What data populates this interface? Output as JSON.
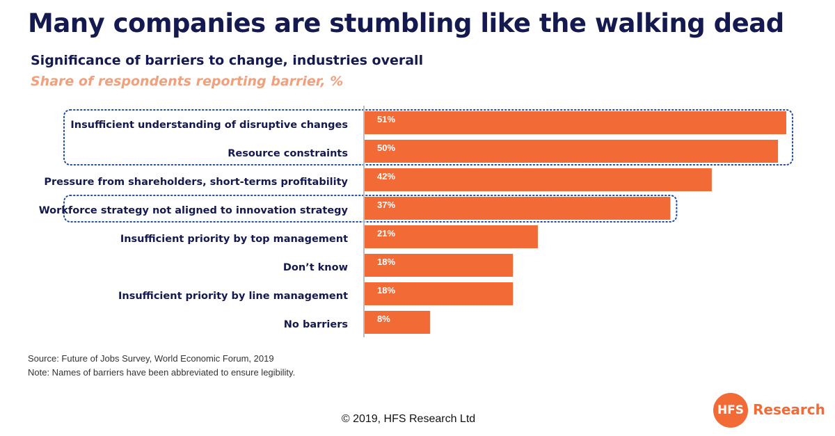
{
  "header": {
    "title": "Many companies are stumbling like the walking dead",
    "subtitle": "Significance of barriers to change, industries overall",
    "unit_label": "Share of respondents reporting barrier, %"
  },
  "chart_data": {
    "type": "bar",
    "orientation": "horizontal",
    "categories": [
      "Insufficient understanding of disruptive changes",
      "Resource constraints",
      "Pressure from shareholders, short-terms profitability",
      "Workforce strategy not aligned to innovation strategy",
      "Insufficient priority by top management",
      "Don’t know",
      "Insufficient priority by line management",
      "No barriers"
    ],
    "values": [
      51,
      50,
      42,
      37,
      21,
      18,
      18,
      8
    ],
    "data_labels": [
      "51%",
      "50%",
      "42%",
      "37%",
      "21%",
      "18%",
      "18%",
      "8%"
    ],
    "xlim": [
      0,
      51
    ],
    "bar_color": "#f26a35",
    "highlight_color": "#1f4e9c",
    "highlight_groups": [
      [
        0,
        1
      ],
      [
        3
      ]
    ],
    "grid": false,
    "legend": "none"
  },
  "footer": {
    "source": "Source: Future of Jobs Survey, World Economic Forum, 2019",
    "note": "Note: Names of barriers have been abbreviated to ensure legibility.",
    "copyright": "© 2019, HFS Research Ltd"
  },
  "logo": {
    "mark": "HFS",
    "text": "Research",
    "color": "#f26a35"
  }
}
